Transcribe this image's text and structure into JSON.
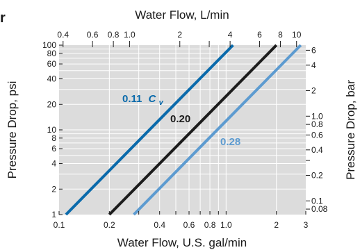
{
  "corner_fragment": "r",
  "chart_data": {
    "type": "line",
    "xlabel": "Water Flow, U.S. gal/min",
    "ylabel": "Pressure Drop, psi",
    "x2label": "Water Flow, L/min",
    "y2label": "Pressure Drop, bar",
    "x_scale": "log",
    "y_scale": "log",
    "xlim": [
      0.1,
      3
    ],
    "ylim": [
      1,
      100
    ],
    "x2lim": [
      0.3785,
      11.356
    ],
    "y2lim": [
      0.0689,
      6.895
    ],
    "grid": true,
    "x_ticks": [
      {
        "value": 0.1,
        "label": "0.1"
      },
      {
        "value": 0.2,
        "label": "0.2"
      },
      {
        "value": 0.3,
        "label": ""
      },
      {
        "value": 0.4,
        "label": "0.4"
      },
      {
        "value": 0.5,
        "label": ""
      },
      {
        "value": 0.6,
        "label": "0.6"
      },
      {
        "value": 0.7,
        "label": ""
      },
      {
        "value": 0.8,
        "label": "0.8"
      },
      {
        "value": 0.9,
        "label": ""
      },
      {
        "value": 1.0,
        "label": "1.0"
      },
      {
        "value": 2,
        "label": "2"
      },
      {
        "value": 3,
        "label": "3"
      }
    ],
    "y_ticks": [
      {
        "value": 1,
        "label": "1"
      },
      {
        "value": 2,
        "label": "2"
      },
      {
        "value": 4,
        "label": "4"
      },
      {
        "value": 6,
        "label": "6"
      },
      {
        "value": 8,
        "label": "8"
      },
      {
        "value": 10,
        "label": "10"
      },
      {
        "value": 20,
        "label": "20"
      },
      {
        "value": 40,
        "label": "40"
      },
      {
        "value": 60,
        "label": "60"
      },
      {
        "value": 80,
        "label": "80"
      },
      {
        "value": 100,
        "label": "100"
      }
    ],
    "x2_ticks": [
      {
        "value": 0.4,
        "label": "0.4"
      },
      {
        "value": 0.6,
        "label": "0.6"
      },
      {
        "value": 0.8,
        "label": "0.8"
      },
      {
        "value": 1.0,
        "label": "1.0"
      },
      {
        "value": 2,
        "label": "2"
      },
      {
        "value": 3,
        "label": ""
      },
      {
        "value": 4,
        "label": "4"
      },
      {
        "value": 6,
        "label": "6"
      },
      {
        "value": 8,
        "label": "8"
      },
      {
        "value": 10,
        "label": "10"
      }
    ],
    "y2_ticks": [
      {
        "value": 0.08,
        "label": "0.08"
      },
      {
        "value": 0.1,
        "label": "0.1"
      },
      {
        "value": 0.2,
        "label": "0.2"
      },
      {
        "value": 0.3,
        "label": ""
      },
      {
        "value": 0.4,
        "label": "0.4"
      },
      {
        "value": 0.6,
        "label": "0.6"
      },
      {
        "value": 0.8,
        "label": "0.8"
      },
      {
        "value": 1.0,
        "label": "1.0"
      },
      {
        "value": 2,
        "label": "2"
      },
      {
        "value": 4,
        "label": "4"
      },
      {
        "value": 6,
        "label": "6"
      }
    ],
    "series": [
      {
        "name": "0.11",
        "name_suffix": "C",
        "name_subscript": "v",
        "cv": 0.11,
        "color": "#0a6aab",
        "points": [
          [
            0.11,
            1
          ],
          [
            0.65,
            35
          ],
          [
            1.1,
            100
          ]
        ]
      },
      {
        "name": "0.20",
        "cv": 0.2,
        "color": "#1c1c1c",
        "points": [
          [
            0.2,
            1
          ],
          [
            0.71,
            12.6
          ],
          [
            2,
            100
          ]
        ]
      },
      {
        "name": "0.28",
        "cv": 0.28,
        "color": "#5d9bd0",
        "points": [
          [
            0.28,
            1
          ],
          [
            1.27,
            20.6
          ],
          [
            2.8,
            100
          ]
        ]
      }
    ],
    "colors": {
      "plot_background": "#dcdcdc",
      "grid": "#ffffff",
      "text": "#1a1a1a"
    }
  }
}
